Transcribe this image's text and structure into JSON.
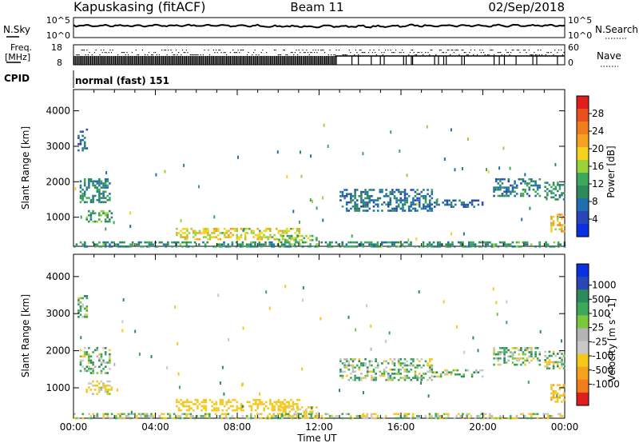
{
  "header": {
    "station": "Kapuskasing (fitACF)",
    "beam": "Beam 11",
    "date": "02/Sep/2018"
  },
  "top_panels": {
    "nsky_label": "N.Sky",
    "nsky_top": "10^5",
    "nsky_bottom": "10^0",
    "nsearch_label": "N.Search",
    "nsearch_top": "10^5",
    "nsearch_bottom": "10^0",
    "freq_label_1": "Freq.",
    "freq_label_2": "[MHz]",
    "freq_top": "18",
    "freq_bottom": "8",
    "nave_label": "Nave",
    "nave_top": "60",
    "nave_bottom": "0",
    "cpid_label": "CPID",
    "cpid_value": "normal (fast) 151"
  },
  "colors": {
    "power_scale": [
      "#0a2fe0",
      "#2a47b8",
      "#1f6fb0",
      "#2e8a5a",
      "#3ca85a",
      "#9ad23c",
      "#f5d21e",
      "#f5a21e",
      "#f07e1e",
      "#e8501e",
      "#e01e1e"
    ],
    "velocity_scale": [
      "#e01e1e",
      "#f07e1e",
      "#f5a21e",
      "#f5c81e",
      "#c8c8c8",
      "#b4b4b4",
      "#7cc83c",
      "#3ca85a",
      "#2e8a5a",
      "#2a47b8",
      "#0a2fe0"
    ]
  },
  "chart_data": [
    {
      "type": "heatmap",
      "panel": "power",
      "ylabel": "Slant Range [km]",
      "ylim": [
        180,
        4600
      ],
      "yticks": [
        "1000",
        "2000",
        "3000",
        "4000"
      ],
      "xlim_hours": [
        0,
        24
      ],
      "colorbar_label": "Power [dB]",
      "colorbar_ticks": [
        "4",
        "8",
        "12",
        "16",
        "20",
        "24",
        "28"
      ],
      "colorbar_range": [
        0,
        32
      ],
      "echo_regions": [
        {
          "t": [
            0.3,
            1.8
          ],
          "r": [
            1400,
            2100
          ],
          "power_db": 10
        },
        {
          "t": [
            0.6,
            1.9
          ],
          "r": [
            850,
            1200
          ],
          "power_db": 12
        },
        {
          "t": [
            0.2,
            0.7
          ],
          "r": [
            2900,
            3500
          ],
          "power_db": 7
        },
        {
          "t": [
            5.0,
            11.0
          ],
          "r": [
            400,
            700
          ],
          "power_db": 18
        },
        {
          "t": [
            10.0,
            12.0
          ],
          "r": [
            200,
            500
          ],
          "power_db": 14
        },
        {
          "t": [
            13.0,
            17.5
          ],
          "r": [
            1200,
            1800
          ],
          "power_db": 8
        },
        {
          "t": [
            17.5,
            20.0
          ],
          "r": [
            1300,
            1500
          ],
          "power_db": 7
        },
        {
          "t": [
            20.5,
            22.8
          ],
          "r": [
            1600,
            2100
          ],
          "power_db": 9
        },
        {
          "t": [
            23.0,
            24.0
          ],
          "r": [
            1500,
            2000
          ],
          "power_db": 10
        },
        {
          "t": [
            23.3,
            24.0
          ],
          "r": [
            600,
            1100
          ],
          "power_db": 20
        },
        {
          "t": [
            0.0,
            24.0
          ],
          "r": [
            200,
            320
          ],
          "power_db": 11
        }
      ]
    },
    {
      "type": "heatmap",
      "panel": "velocity",
      "ylabel": "Slant Range [km]",
      "ylim": [
        180,
        4600
      ],
      "yticks": [
        "1000",
        "2000",
        "3000",
        "4000"
      ],
      "xlim_hours": [
        0,
        24
      ],
      "xlabel": "Time UT",
      "xticks": [
        "00:00",
        "04:00",
        "08:00",
        "12:00",
        "16:00",
        "20:00",
        "00:00"
      ],
      "colorbar_label": "Velocity [m s^-1]",
      "colorbar_ticks": [
        "1000",
        "500",
        "100",
        "25",
        "-25",
        "-100",
        "-500",
        "-1000"
      ],
      "echo_regions": [
        {
          "t": [
            0.3,
            1.8
          ],
          "r": [
            1400,
            2100
          ],
          "velocity": 20
        },
        {
          "t": [
            0.6,
            1.9
          ],
          "r": [
            850,
            1200
          ],
          "velocity": -120
        },
        {
          "t": [
            0.2,
            0.7
          ],
          "r": [
            2900,
            3500
          ],
          "velocity": -15
        },
        {
          "t": [
            5.0,
            11.0
          ],
          "r": [
            400,
            700
          ],
          "velocity": -300
        },
        {
          "t": [
            10.0,
            12.0
          ],
          "r": [
            200,
            500
          ],
          "velocity": -200
        },
        {
          "t": [
            13.0,
            17.5
          ],
          "r": [
            1200,
            1800
          ],
          "velocity": 10
        },
        {
          "t": [
            17.5,
            20.0
          ],
          "r": [
            1300,
            1500
          ],
          "velocity": 5
        },
        {
          "t": [
            20.5,
            22.8
          ],
          "r": [
            1600,
            2100
          ],
          "velocity": 15
        },
        {
          "t": [
            23.0,
            24.0
          ],
          "r": [
            1500,
            2000
          ],
          "velocity": 0
        },
        {
          "t": [
            23.3,
            24.0
          ],
          "r": [
            600,
            1100
          ],
          "velocity": -400
        },
        {
          "t": [
            0.0,
            24.0
          ],
          "r": [
            200,
            320
          ],
          "velocity": -50
        }
      ]
    }
  ]
}
